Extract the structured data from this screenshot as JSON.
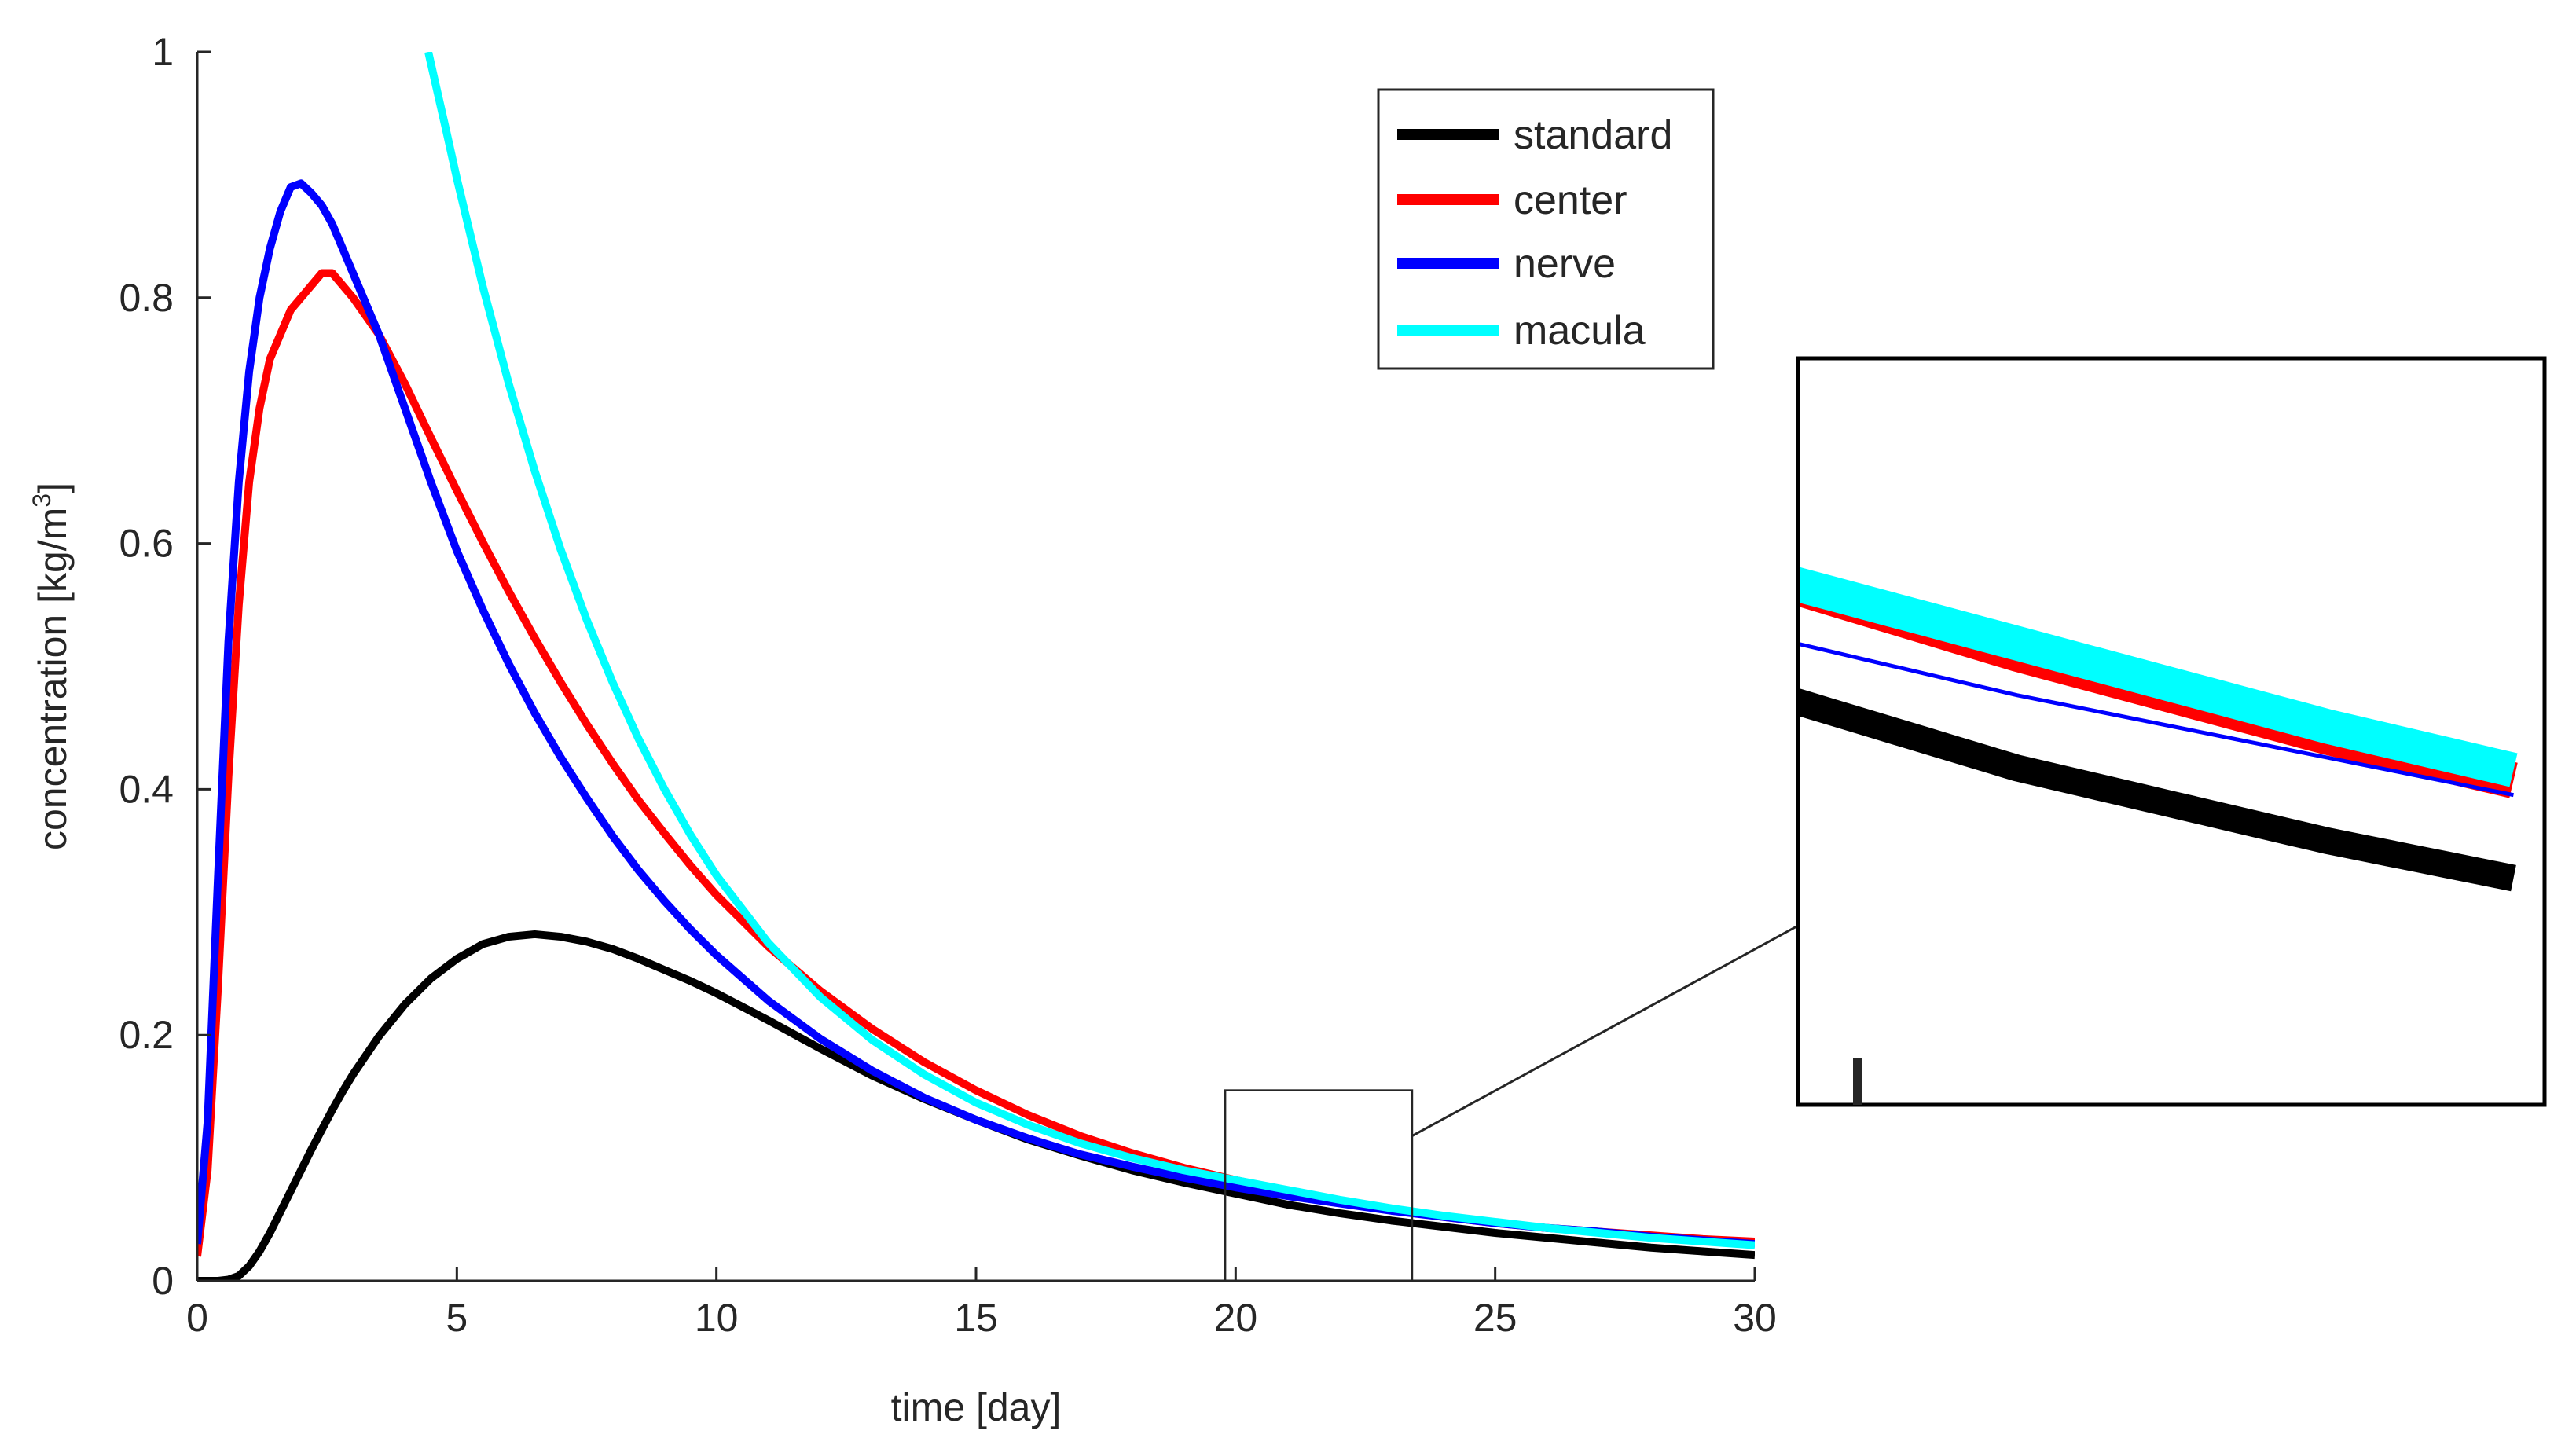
{
  "chart_data": {
    "type": "line",
    "title": "",
    "xlabel": "time [day]",
    "ylabel": "concentration [kg/m",
    "ylabel_superscript": "3",
    "ylabel_suffix": "]",
    "xlim": [
      0,
      30
    ],
    "ylim": [
      0,
      1
    ],
    "grid": false,
    "legend_position": "top-right",
    "x_tick_labels": [
      "0",
      "5",
      "10",
      "15",
      "20",
      "25",
      "30"
    ],
    "y_tick_labels": [
      "0",
      "0.2",
      "0.4",
      "0.6",
      "0.8",
      "1"
    ],
    "x": [
      0,
      0.2,
      0.4,
      0.6,
      0.8,
      1,
      1.2,
      1.4,
      1.6,
      1.8,
      2,
      2.2,
      2.4,
      2.6,
      2.8,
      3,
      3.5,
      4,
      4.5,
      5,
      5.5,
      6,
      6.5,
      7,
      7.5,
      8,
      8.5,
      9,
      9.5,
      10,
      11,
      12,
      13,
      14,
      15,
      16,
      17,
      18,
      19,
      20,
      21,
      22,
      23,
      24,
      25,
      26,
      27,
      28,
      29,
      30
    ],
    "series": [
      {
        "name": "standard",
        "color": "#000000",
        "values": [
          0.0,
          0.0,
          0.0,
          0.001,
          0.004,
          0.012,
          0.024,
          0.039,
          0.056,
          0.073,
          0.09,
          0.107,
          0.123,
          0.139,
          0.154,
          0.168,
          0.199,
          0.225,
          0.246,
          0.262,
          0.274,
          0.28,
          0.282,
          0.28,
          0.276,
          0.27,
          0.262,
          0.253,
          0.244,
          0.234,
          0.212,
          0.189,
          0.167,
          0.148,
          0.131,
          0.115,
          0.102,
          0.09,
          0.08,
          0.071,
          0.062,
          0.055,
          0.049,
          0.044,
          0.039,
          0.035,
          0.031,
          0.027,
          0.024,
          0.021
        ]
      },
      {
        "name": "center",
        "color": "#ff0000",
        "values": [
          0.02,
          0.09,
          0.24,
          0.41,
          0.55,
          0.65,
          0.71,
          0.75,
          0.77,
          0.79,
          0.8,
          0.81,
          0.82,
          0.82,
          0.81,
          0.8,
          0.77,
          0.73,
          0.686,
          0.643,
          0.601,
          0.561,
          0.523,
          0.487,
          0.453,
          0.421,
          0.391,
          0.364,
          0.338,
          0.314,
          0.272,
          0.236,
          0.205,
          0.178,
          0.155,
          0.135,
          0.118,
          0.104,
          0.092,
          0.082,
          0.073,
          0.065,
          0.058,
          0.052,
          0.047,
          0.043,
          0.04,
          0.037,
          0.034,
          0.032
        ]
      },
      {
        "name": "nerve",
        "color": "#0000ff",
        "values": [
          0.03,
          0.13,
          0.33,
          0.52,
          0.65,
          0.74,
          0.8,
          0.84,
          0.87,
          0.89,
          0.893,
          0.885,
          0.875,
          0.86,
          0.84,
          0.82,
          0.77,
          0.71,
          0.65,
          0.594,
          0.546,
          0.502,
          0.462,
          0.426,
          0.393,
          0.362,
          0.334,
          0.309,
          0.286,
          0.265,
          0.228,
          0.197,
          0.171,
          0.149,
          0.131,
          0.116,
          0.103,
          0.093,
          0.084,
          0.076,
          0.069,
          0.063,
          0.057,
          0.052,
          0.047,
          0.043,
          0.04,
          0.036,
          0.033,
          0.03
        ]
      },
      {
        "name": "macula",
        "color": "#00ffff",
        "x": [
          4.45,
          4.6,
          4.8,
          5,
          5.5,
          6,
          6.5,
          7,
          7.5,
          8,
          8.5,
          9,
          9.5,
          10,
          11,
          12,
          13,
          14,
          15,
          16,
          17,
          18,
          19,
          20,
          21,
          22,
          23,
          24,
          25,
          26,
          27,
          28,
          29,
          30
        ],
        "values": [
          1.0,
          0.972,
          0.935,
          0.897,
          0.809,
          0.73,
          0.659,
          0.595,
          0.538,
          0.487,
          0.441,
          0.4,
          0.363,
          0.33,
          0.275,
          0.231,
          0.196,
          0.168,
          0.145,
          0.127,
          0.112,
          0.1,
          0.09,
          0.082,
          0.074,
          0.066,
          0.059,
          0.053,
          0.048,
          0.043,
          0.039,
          0.035,
          0.032,
          0.029
        ]
      }
    ],
    "inset": {
      "type": "line",
      "description": "zoomed view",
      "source_xlim": [
        19.8,
        23.4
      ],
      "source_ylim": [
        0,
        0.155
      ]
    }
  }
}
